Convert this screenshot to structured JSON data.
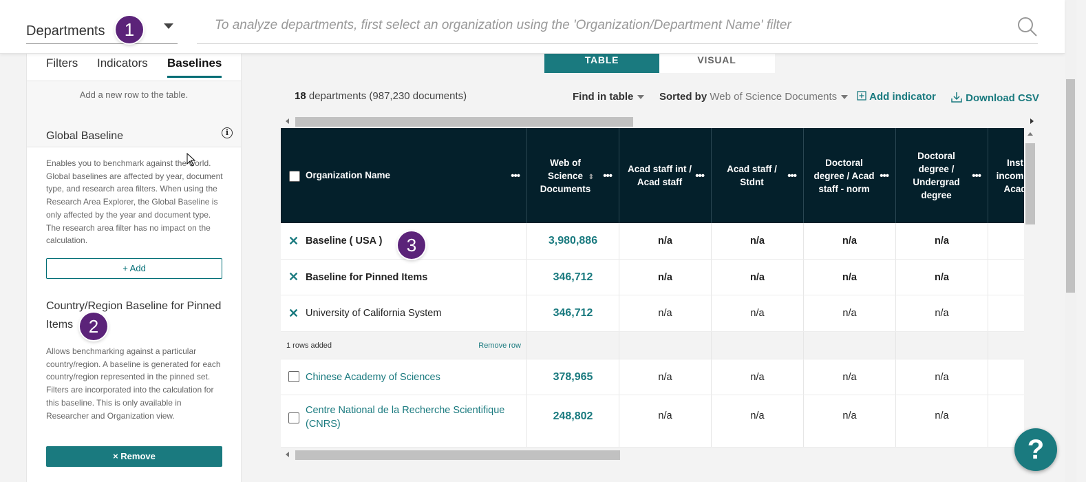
{
  "header": {
    "view_select": "Departments",
    "search_placeholder": "To analyze departments, first select an organization using the 'Organization/Department Name' filter"
  },
  "badges": [
    "1",
    "2",
    "3"
  ],
  "sidebar": {
    "tabs": [
      "Filters",
      "Indicators",
      "Baselines"
    ],
    "active_tab": "Baselines",
    "add_row_hint": "Add a new row to the table.",
    "global": {
      "title": "Global Baseline",
      "desc": "Enables you to benchmark against the world. Global baselines are affected by year, document type, and research area filters. When using the Research Area Explorer, the Global Baseline is only affected by the year and document type. The research area filter has no impact on the calculation.",
      "add_label": "+ Add"
    },
    "country": {
      "title": "Country/Region Baseline for Pinned Items",
      "desc": "Allows benchmarking against a particular country/region. A baseline is generated for each country/region represented in the pinned set. Filters are incorporated into the calculation for this baseline. This is only available in Researcher and Organization view.",
      "remove_label": "× Remove"
    }
  },
  "view_toggle": {
    "table": "TABLE",
    "visual": "VISUAL"
  },
  "summary": {
    "count": "18",
    "text": "departments (987,230 documents)"
  },
  "toolbar": {
    "find": "Find in table",
    "sorted_prefix": "Sorted by",
    "sorted_value": "Web of Science Documents",
    "add_indicator": "Add indicator",
    "download": "Download CSV"
  },
  "table": {
    "columns": [
      "Organization Name",
      "Web of Science Documents",
      "Acad staff int / Acad staff",
      "Acad staff / Stdnt",
      "Doctoral degree / Acad staff - norm",
      "Doctoral degree / Undergrad degree",
      "Inst income / Acad"
    ],
    "baseline_rows": [
      {
        "name": "Baseline ( USA )",
        "docs": "3,980,886",
        "v1": "n/a",
        "v2": "n/a",
        "v3": "n/a",
        "v4": "n/a"
      },
      {
        "name": "Baseline for Pinned Items",
        "docs": "346,712",
        "v1": "n/a",
        "v2": "n/a",
        "v3": "n/a",
        "v4": "n/a"
      },
      {
        "name": "University of California System",
        "docs": "346,712",
        "v1": "n/a",
        "v2": "n/a",
        "v3": "n/a",
        "v4": "n/a"
      }
    ],
    "added_info": "1 rows added",
    "remove_row": "Remove row",
    "rows": [
      {
        "name": "Chinese Academy of Sciences",
        "docs": "378,965",
        "v1": "n/a",
        "v2": "n/a",
        "v3": "n/a",
        "v4": "n/a"
      },
      {
        "name": "Centre National de la Recherche Scientifique (CNRS)",
        "docs": "248,802",
        "v1": "n/a",
        "v2": "n/a",
        "v3": "n/a",
        "v4": "n/a"
      }
    ]
  },
  "help": "?",
  "colors": {
    "accent": "#1a7a7f",
    "header_dark": "#04202b",
    "badge": "#5b2379"
  }
}
